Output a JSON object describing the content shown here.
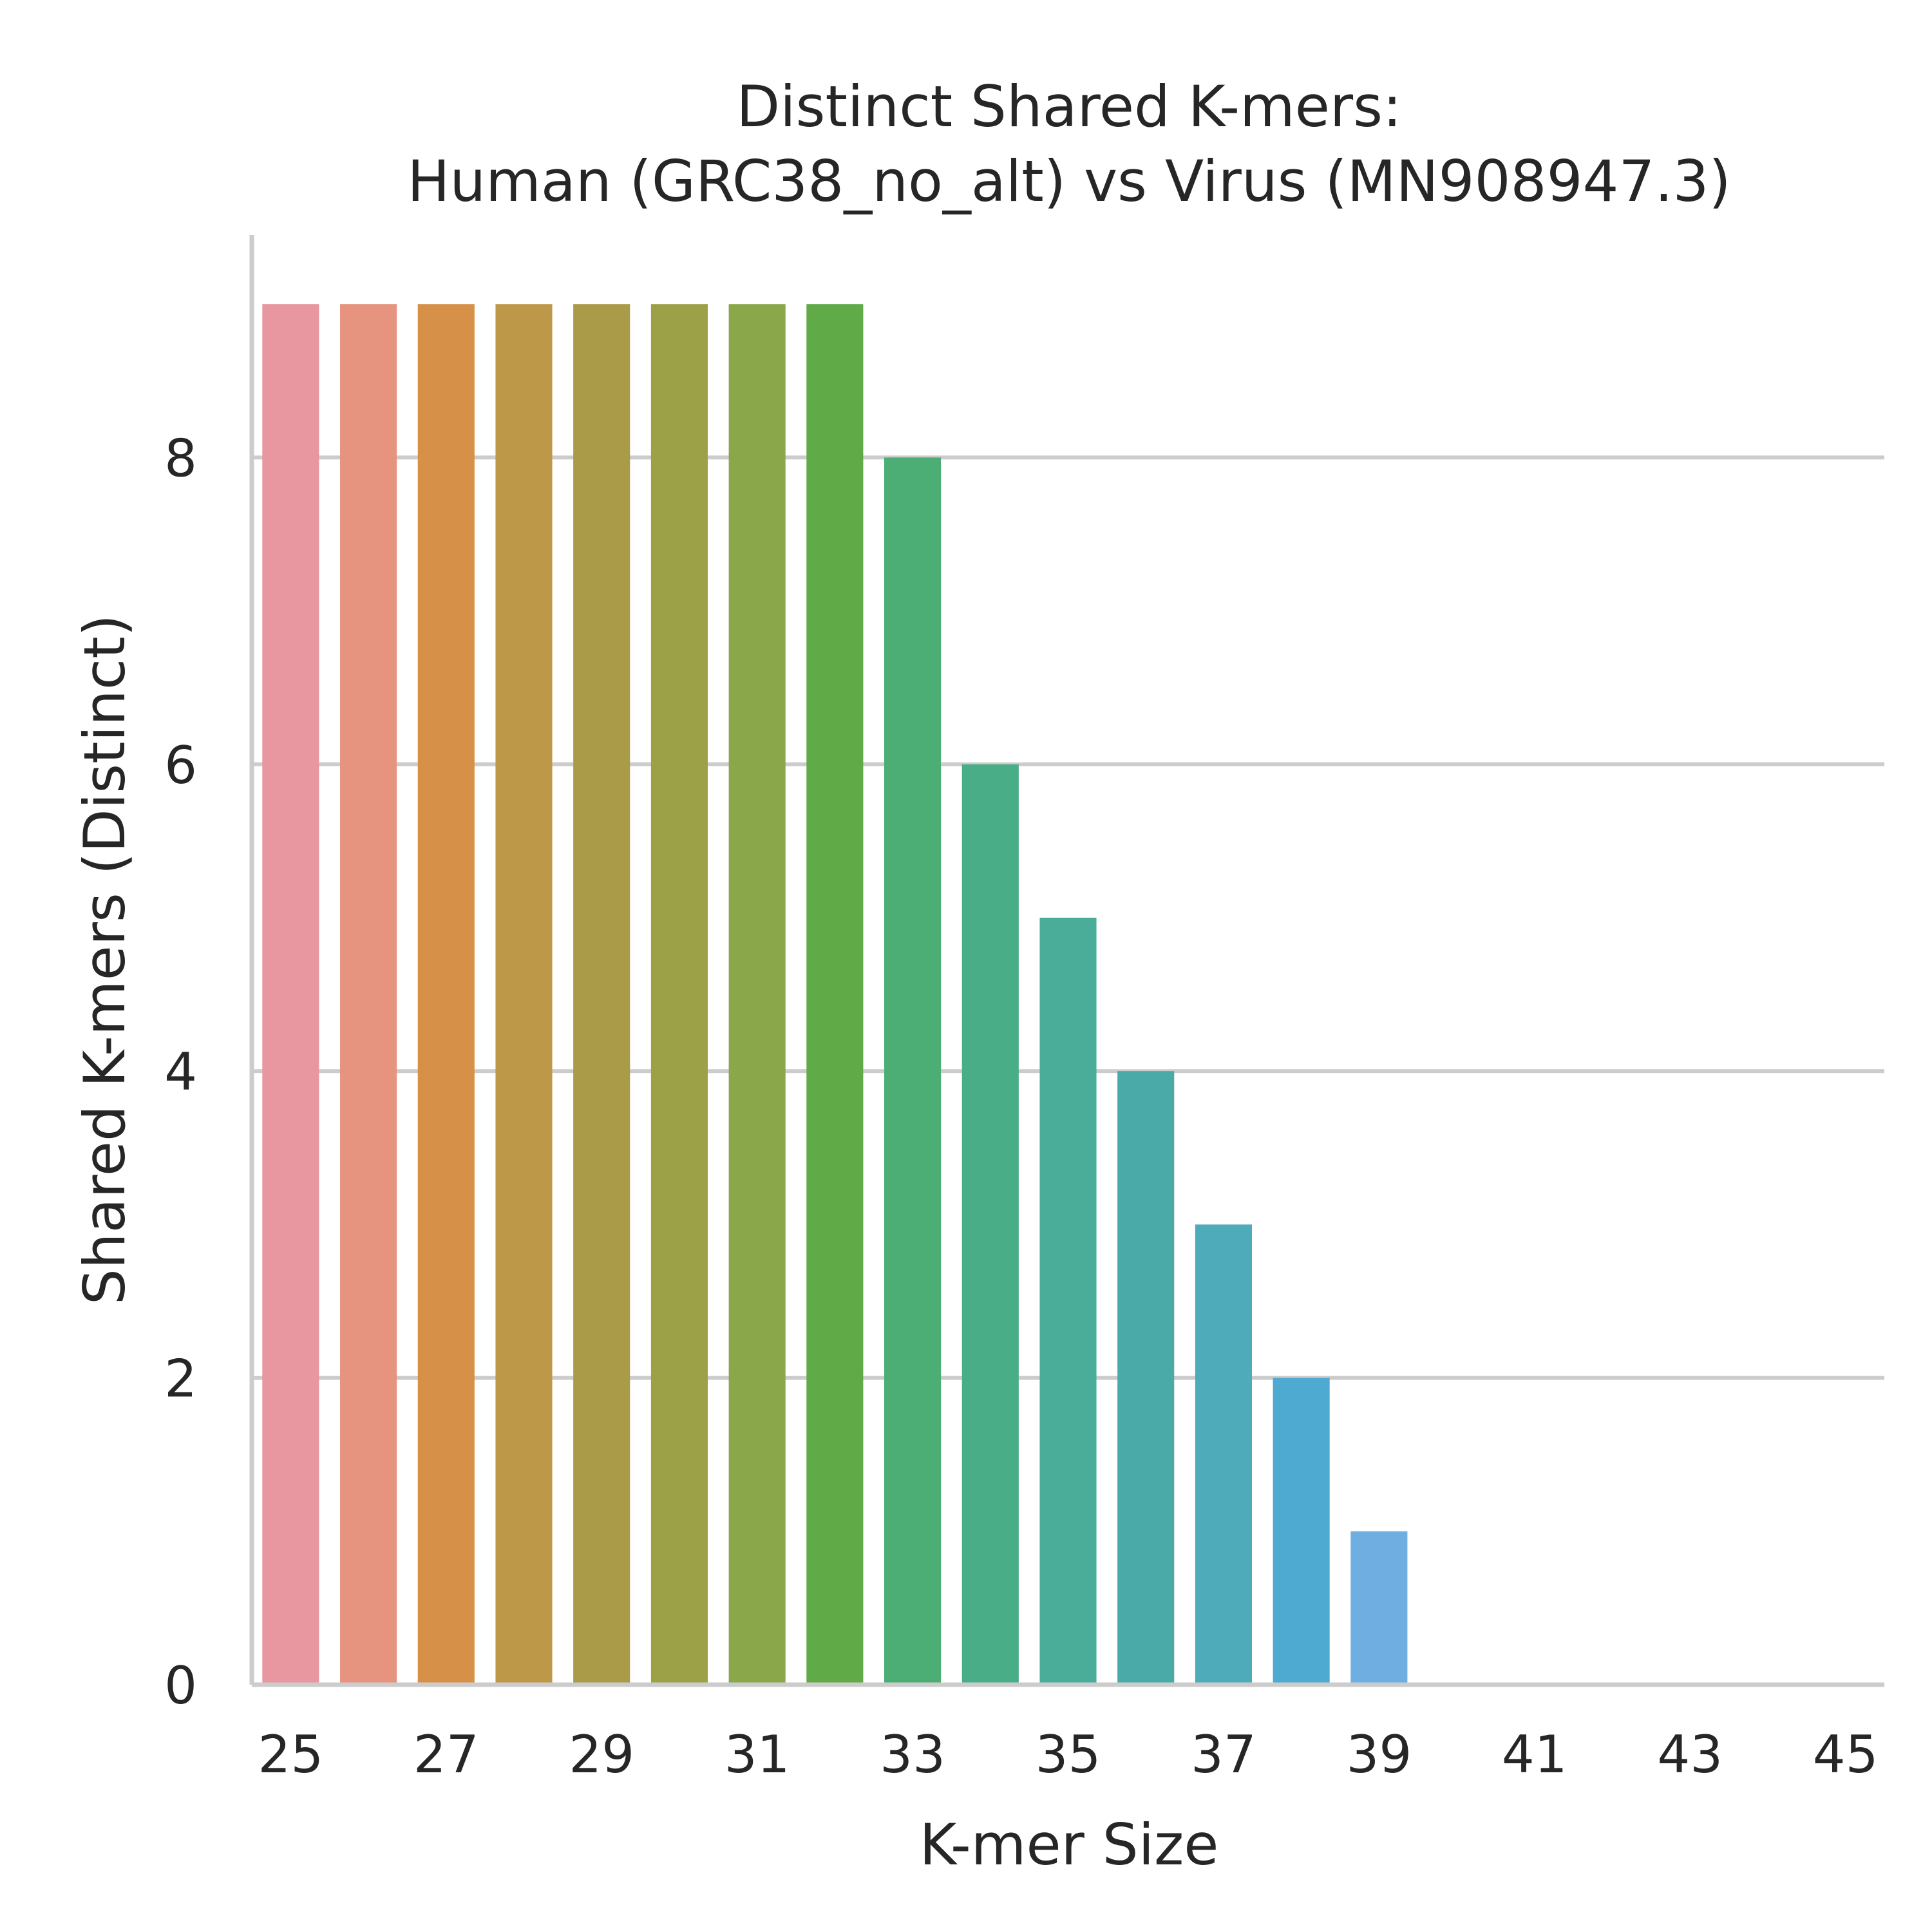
{
  "chart_data": {
    "type": "bar",
    "title_lines": [
      "Distinct Shared K-mers:",
      "Human (GRC38_no_alt) vs Virus (MN908947.3)"
    ],
    "xlabel": "K-mer Size",
    "ylabel": "Shared K-mers (Distinct)",
    "categories": [
      "25",
      "26",
      "27",
      "28",
      "29",
      "30",
      "31",
      "32",
      "33",
      "34",
      "35",
      "36",
      "37",
      "38",
      "39",
      "40",
      "41",
      "42",
      "43",
      "44",
      "45"
    ],
    "values": [
      9,
      9,
      9,
      9,
      9,
      9,
      9,
      9,
      8,
      6,
      5,
      4,
      3,
      2,
      1,
      0,
      0,
      0,
      0,
      0,
      0
    ],
    "x_tick_labels": [
      "25",
      "27",
      "29",
      "31",
      "33",
      "35",
      "37",
      "39",
      "41",
      "43",
      "45"
    ],
    "y_ticks": [
      0,
      2,
      4,
      6,
      8
    ],
    "ylim": [
      0,
      9.45
    ],
    "grid": "y",
    "colors": [
      "#e8969f",
      "#e6947f",
      "#d69047",
      "#bd9849",
      "#a99b47",
      "#9ca046",
      "#8aa84a",
      "#60ab48",
      "#4cae75",
      "#49ae87",
      "#4aad9a",
      "#4aaaa8",
      "#4dabba",
      "#4eaad0",
      "#6eaee0",
      "#78a6e4",
      "#9aa8e6",
      "#b3a4e6",
      "#c9a0e4",
      "#da9ce0",
      "#e498d0"
    ]
  }
}
